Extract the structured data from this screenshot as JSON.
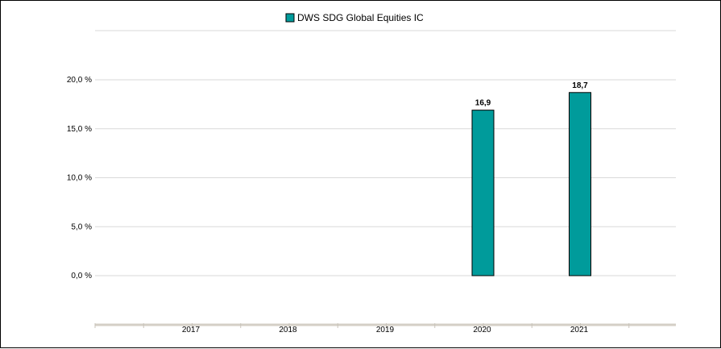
{
  "chart_data": {
    "type": "bar",
    "title": "",
    "xlabel": "",
    "ylabel": "",
    "categories": [
      "2017",
      "2018",
      "2019",
      "2020",
      "2021"
    ],
    "series": [
      {
        "name": "DWS SDG Global Equities  IC",
        "color": "#009b9b",
        "values": [
          null,
          null,
          null,
          16.9,
          18.7
        ],
        "labels": [
          "",
          "",
          "",
          "16,9",
          "18,7"
        ]
      }
    ],
    "ylim": [
      -5,
      20
    ],
    "yticks": [
      0,
      5,
      10,
      15,
      20
    ],
    "ytick_labels": [
      "0,0 %",
      "5,0 %",
      "10,0 %",
      "15,0 %",
      "20,0 %"
    ],
    "grid": true,
    "legend": "top-center"
  }
}
